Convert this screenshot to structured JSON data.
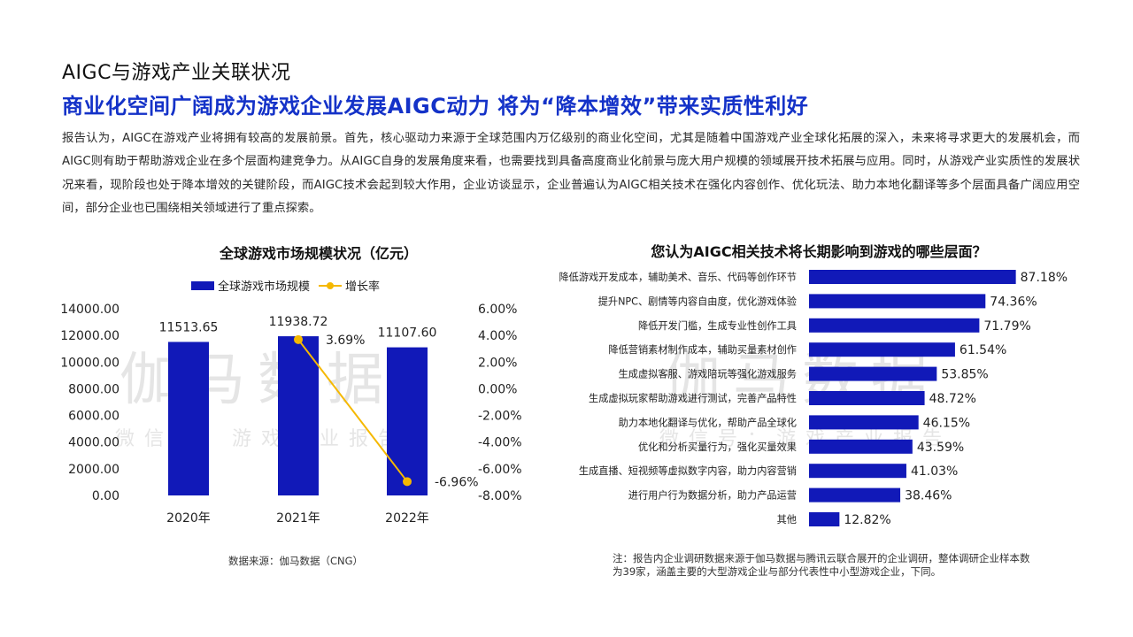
{
  "header": {
    "small_title": "AIGC与游戏产业关联状况",
    "main_title": "商业化空间广阔成为游戏企业发展AIGC动力 将为“降本增效”带来实质性利好"
  },
  "intro": "报告认为，AIGC在游戏产业将拥有较高的发展前景。首先，核心驱动力来源于全球范围内万亿级别的商业化空间，尤其是随着中国游戏产业全球化拓展的深入，未来将寻求更大的发展机会，而AIGC则有助于帮助游戏企业在多个层面构建竞争力。从AIGC自身的发展角度来看，也需要找到具备高度商业化前景与庞大用户规模的领域展开技术拓展与应用。同时，从游戏产业实质性的发展状况来看，现阶段也处于降本增效的关键阶段，而AIGC技术会起到较大作用，企业访谈显示，企业普遍认为AIGC相关技术在强化内容创作、优化玩法、助力本地化翻译等多个层面具备广阔应用空间，部分企业也已围绕相关领域进行了重点探索。",
  "watermark": {
    "big": "伽马数据",
    "small": "微信号：游戏产业报告"
  },
  "colors": {
    "accent_title": "#1432c8",
    "bar": "#1119b8",
    "line": "#f5b800"
  },
  "chart_data": [
    {
      "type": "bar",
      "title": "全球游戏市场规模状况（亿元）",
      "categories": [
        "2020年",
        "2021年",
        "2022年"
      ],
      "series": [
        {
          "name": "全球游戏市场规模",
          "values": [
            11513.65,
            11938.72,
            11107.6
          ],
          "value_labels": [
            "11513.65",
            "11938.72",
            "11107.60"
          ],
          "axis": "left"
        },
        {
          "name": "增长率",
          "kind": "line",
          "values": [
            null,
            3.69,
            -6.96
          ],
          "value_labels": [
            "",
            "3.69%",
            "-6.96%"
          ],
          "axis": "right"
        }
      ],
      "ylim": [
        0,
        14000
      ],
      "y_ticks": [
        "14000.00",
        "12000.00",
        "10000.00",
        "8000.00",
        "6000.00",
        "4000.00",
        "2000.00",
        "0.00"
      ],
      "y2lim": [
        -8,
        6
      ],
      "y2_ticks": [
        "6.00%",
        "4.00%",
        "2.00%",
        "0.00%",
        "-2.00%",
        "-4.00%",
        "-6.00%",
        "-8.00%"
      ],
      "legend_position": "top",
      "grid": false
    },
    {
      "type": "bar",
      "orientation": "horizontal",
      "title": "您认为AIGC相关技术将长期影响到游戏的哪些层面？",
      "categories": [
        "降低游戏开发成本，辅助美术、音乐、代码等创作环节",
        "提升NPC、剧情等内容自由度，优化游戏体验",
        "降低开发门槛，生成专业性创作工具",
        "降低营销素材制作成本，辅助买量素材创作",
        "生成虚拟客服、游戏陪玩等强化游戏服务",
        "生成虚拟玩家帮助游戏进行测试，完善产品特性",
        "助力本地化翻译与优化，帮助产品全球化",
        "优化和分析买量行为，强化买量效果",
        "生成直播、短视频等虚拟数字内容，助力内容营销",
        "进行用户行为数据分析，助力产品运营",
        "其他"
      ],
      "values": [
        87.18,
        74.36,
        71.79,
        61.54,
        53.85,
        48.72,
        46.15,
        43.59,
        41.03,
        38.46,
        12.82
      ],
      "value_labels": [
        "87.18%",
        "74.36%",
        "71.79%",
        "61.54%",
        "53.85%",
        "48.72%",
        "46.15%",
        "43.59%",
        "41.03%",
        "38.46%",
        "12.82%"
      ],
      "xlim": [
        0,
        100
      ],
      "grid": false
    }
  ],
  "source": "数据来源：伽马数据（CNG）",
  "note": "注：报告内企业调研数据来源于伽马数据与腾讯云联合展开的企业调研，整体调研企业样本数为39家，涵盖主要的大型游戏企业与部分代表性中小型游戏企业，下同。"
}
